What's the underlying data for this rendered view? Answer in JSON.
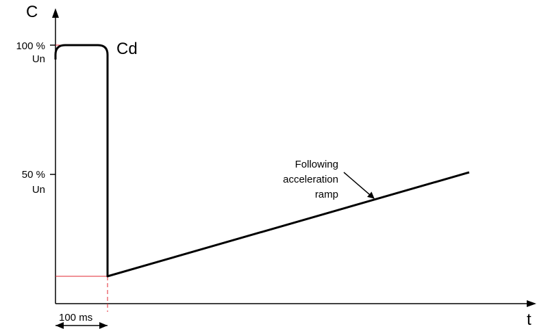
{
  "axes": {
    "y_label": "C",
    "x_label": "t"
  },
  "y_ticks": {
    "t100_line1": "100 %",
    "t100_line2": "Un",
    "t50_line1": "50 %",
    "t50_line2": "Un"
  },
  "curve_label": "Cd",
  "annotation": {
    "line1": "Following",
    "line2": "acceleration",
    "line3": "ramp"
  },
  "duration_label": "100 ms",
  "colors": {
    "curve": "#000000",
    "guide": "#e0242f"
  }
}
